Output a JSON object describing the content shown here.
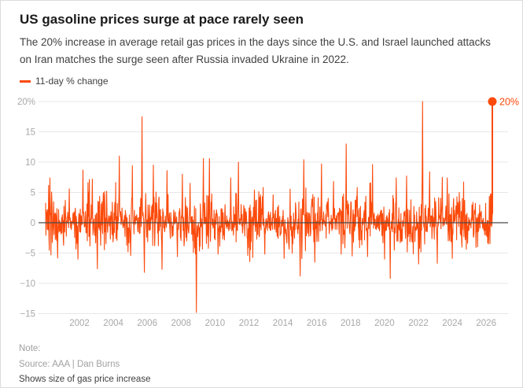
{
  "header": {
    "title": "US gasoline prices surge at pace rarely seen",
    "subtitle": "The 20% increase in average retail gas prices in the days since the U.S. and Israel launched attacks on Iran matches the surge seen after Russia invaded Ukraine in 2022."
  },
  "legend": {
    "label": "11-day % change"
  },
  "colors": {
    "accent": "#fb4a0b",
    "title_text": "#1a1a1a",
    "body_text": "#404040",
    "axis_text": "#a8a8a8",
    "gridline": "#e7e7e7",
    "zero_line": "#4a4a4a"
  },
  "footer": {
    "note_label": "Note:",
    "source": "Source: AAA | Dan Burns",
    "caption": "Shows size of gas price increase"
  },
  "chart_data": {
    "type": "line",
    "series": [
      {
        "name": "11-day % change",
        "color": "#fb4a0b"
      }
    ],
    "x_domain": [
      2000.0,
      2026.3
    ],
    "ylim": [
      -15,
      20
    ],
    "yticks": [
      {
        "value": 20,
        "label": "20%"
      },
      {
        "value": 15,
        "label": "15"
      },
      {
        "value": 10,
        "label": "10"
      },
      {
        "value": 5,
        "label": "5"
      },
      {
        "value": 0,
        "label": "0"
      },
      {
        "value": -5,
        "label": "−5"
      },
      {
        "value": -10,
        "label": "−10"
      },
      {
        "value": -15,
        "label": "−15"
      }
    ],
    "xticks": [
      2002,
      2004,
      2006,
      2008,
      2010,
      2012,
      2014,
      2016,
      2018,
      2020,
      2022,
      2024,
      2026
    ],
    "grid": "horizontal",
    "legend_position": "top-left",
    "zero_line": 0,
    "end_annotation": {
      "label": "20%",
      "value": 20,
      "marker": "dot"
    },
    "key_points": [
      [
        2000.25,
        7.4
      ],
      [
        2000.7,
        -5.8
      ],
      [
        2001.4,
        5.6
      ],
      [
        2001.9,
        -6.0
      ],
      [
        2002.2,
        8.7
      ],
      [
        2002.75,
        7.2
      ],
      [
        2003.05,
        -7.6
      ],
      [
        2003.6,
        5.2
      ],
      [
        2004.35,
        11.0
      ],
      [
        2004.85,
        -4.8
      ],
      [
        2005.1,
        9.4
      ],
      [
        2005.67,
        17.5
      ],
      [
        2005.82,
        -8.2
      ],
      [
        2006.35,
        9.5
      ],
      [
        2006.85,
        -7.7
      ],
      [
        2007.15,
        8.6
      ],
      [
        2007.75,
        -5.6
      ],
      [
        2008.05,
        8.0
      ],
      [
        2008.5,
        6.5
      ],
      [
        2008.88,
        -14.8
      ],
      [
        2009.3,
        10.6
      ],
      [
        2009.65,
        10.6
      ],
      [
        2010.15,
        -5.2
      ],
      [
        2010.9,
        7.4
      ],
      [
        2011.35,
        10.0
      ],
      [
        2011.9,
        -5.4
      ],
      [
        2012.3,
        5.4
      ],
      [
        2012.9,
        -5.2
      ],
      [
        2013.4,
        4.6
      ],
      [
        2014.05,
        -5.9
      ],
      [
        2014.98,
        -8.8
      ],
      [
        2015.2,
        10.4
      ],
      [
        2015.85,
        -6.5
      ],
      [
        2016.25,
        9.7
      ],
      [
        2016.95,
        6.8
      ],
      [
        2017.7,
        13.0
      ],
      [
        2018.05,
        -5.5
      ],
      [
        2018.35,
        5.8
      ],
      [
        2018.95,
        -5.6
      ],
      [
        2019.25,
        9.6
      ],
      [
        2019.95,
        -6.0
      ],
      [
        2020.28,
        -9.2
      ],
      [
        2020.65,
        7.4
      ],
      [
        2021.25,
        7.7
      ],
      [
        2021.95,
        -6.8
      ],
      [
        2022.2,
        20.0
      ],
      [
        2022.6,
        8.4
      ],
      [
        2023.05,
        -6.7
      ],
      [
        2023.35,
        7.5
      ],
      [
        2023.65,
        7.4
      ],
      [
        2023.95,
        -5.9
      ],
      [
        2024.35,
        5.0
      ],
      [
        2024.85,
        -3.4
      ],
      [
        2025.3,
        3.2
      ]
    ],
    "noise": {
      "seed": 20250613,
      "n": 1340,
      "scale": 3.1
    }
  }
}
